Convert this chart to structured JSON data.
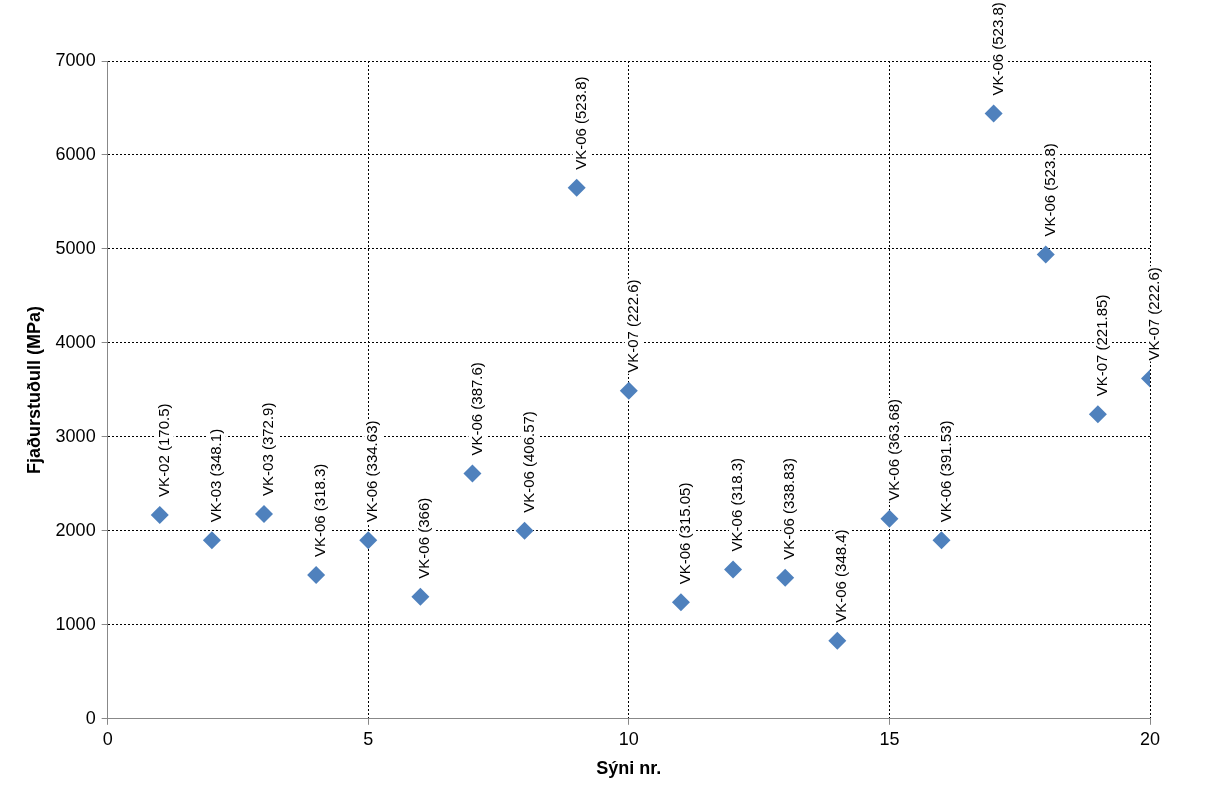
{
  "chart_data": {
    "type": "scatter",
    "xlabel": "Sýni nr.",
    "ylabel": "Fjaðurstuðull (MPa)",
    "x": [
      1,
      2,
      3,
      4,
      5,
      6,
      7,
      8,
      9,
      10,
      11,
      12,
      13,
      14,
      15,
      16,
      17,
      18,
      19,
      20
    ],
    "values": [
      2170,
      1900,
      2180,
      1530,
      1900,
      1300,
      2610,
      2000,
      5650,
      3490,
      1240,
      1590,
      1500,
      830,
      2130,
      1900,
      6440,
      4940,
      3240,
      3620
    ],
    "color": "#4f81bd",
    "marker": "diamond",
    "grid": true,
    "xlim": [
      0,
      20
    ],
    "xticks": [
      0,
      5,
      10,
      15,
      20
    ],
    "ylim": [
      0,
      7000
    ],
    "yticks": [
      0,
      1000,
      2000,
      3000,
      4000,
      5000,
      6000,
      7000
    ],
    "annotations": [
      {
        "text": "VK-02 (170.5)",
        "x": 1,
        "y": 2170
      },
      {
        "text": "VK-03 (348.1)",
        "x": 2,
        "y": 1900
      },
      {
        "text": "VK-03 (372.9)",
        "x": 3,
        "y": 2180
      },
      {
        "text": "VK-06 (318.3)",
        "x": 4,
        "y": 1530
      },
      {
        "text": "VK-06 (334.63)",
        "x": 5,
        "y": 1900
      },
      {
        "text": "VK-06 (366)",
        "x": 6,
        "y": 1300
      },
      {
        "text": "VK-06 (387.6)",
        "x": 7,
        "y": 2610
      },
      {
        "text": "VK-06 (406.57)",
        "x": 8,
        "y": 2000
      },
      {
        "text": "VK-06 (523.8)",
        "x": 9,
        "y": 5650
      },
      {
        "text": "VK-07 (222.6)",
        "x": 10,
        "y": 3490
      },
      {
        "text": "VK-06 (315.05)",
        "x": 11,
        "y": 1240
      },
      {
        "text": "VK-06 (318.3)",
        "x": 12,
        "y": 1590
      },
      {
        "text": "VK-06 (338.83)",
        "x": 13,
        "y": 1500
      },
      {
        "text": "VK-06 (348.4)",
        "x": 14,
        "y": 830
      },
      {
        "text": "VK-06 (363.68)",
        "x": 15,
        "y": 2130
      },
      {
        "text": "VK-06 (391.53)",
        "x": 16,
        "y": 1900
      },
      {
        "text": "VK-06 (523.8)",
        "x": 17,
        "y": 6440
      },
      {
        "text": "VK-06 (523.8)",
        "x": 18,
        "y": 4940
      },
      {
        "text": "VK-07 (221.85)",
        "x": 19,
        "y": 3240
      },
      {
        "text": "VK-07 (222.6)",
        "x": 20,
        "y": 3620
      }
    ]
  }
}
